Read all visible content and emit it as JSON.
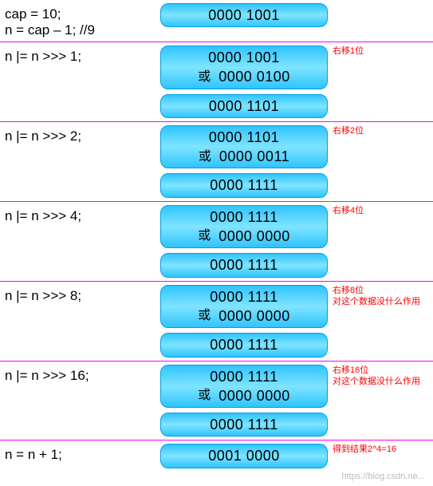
{
  "colors": {
    "divider": "#ff00ff",
    "note_text": "#ff0000",
    "box_gradient_top": "#2fc4ff",
    "box_gradient_mid": "#7fe4ff",
    "box_border": "#00a0e0",
    "code_text": "#000000",
    "background": "#ffffff"
  },
  "typography": {
    "code_fontsize": 17,
    "bin_fontsize": 18,
    "note_fontsize": 11,
    "font_family": "Arial"
  },
  "or_label": "或",
  "steps": [
    {
      "code": "cap = 10;\nn = cap – 1; //9",
      "boxes": [
        {
          "type": "single",
          "val": "0000 1001"
        }
      ],
      "notes": []
    },
    {
      "code": "n |= n >>> 1;",
      "boxes": [
        {
          "type": "or",
          "a": "0000 1001",
          "b": "0000 0100"
        },
        {
          "type": "single",
          "val": "0000 1101"
        }
      ],
      "notes": [
        "右移1位"
      ]
    },
    {
      "code": "n |= n >>> 2;",
      "boxes": [
        {
          "type": "or",
          "a": "0000 1101",
          "b": "0000 0011"
        },
        {
          "type": "single",
          "val": "0000 1111"
        }
      ],
      "notes": [
        "右移2位"
      ]
    },
    {
      "code": "n |= n >>> 4;",
      "boxes": [
        {
          "type": "or",
          "a": "0000 1111",
          "b": "0000 0000"
        },
        {
          "type": "single",
          "val": "0000 1111"
        }
      ],
      "notes": [
        "右移4位"
      ]
    },
    {
      "code": "n |= n >>> 8;",
      "boxes": [
        {
          "type": "or",
          "a": "0000 1111",
          "b": "0000 0000"
        },
        {
          "type": "single",
          "val": "0000 1111"
        }
      ],
      "notes": [
        "右移8位",
        "对这个数据没什么作用"
      ]
    },
    {
      "code": "n |= n >>> 16;",
      "boxes": [
        {
          "type": "or",
          "a": "0000 1111",
          "b": "0000 0000"
        },
        {
          "type": "single",
          "val": "0000 1111"
        }
      ],
      "notes": [
        "右移16位",
        "对这个数据没什么作用"
      ]
    },
    {
      "code": "n = n + 1;",
      "boxes": [
        {
          "type": "single",
          "val": "0001 0000"
        }
      ],
      "notes": [
        "得到结果2^4=16"
      ]
    }
  ],
  "watermark": "https://blog.csdn.ne..."
}
